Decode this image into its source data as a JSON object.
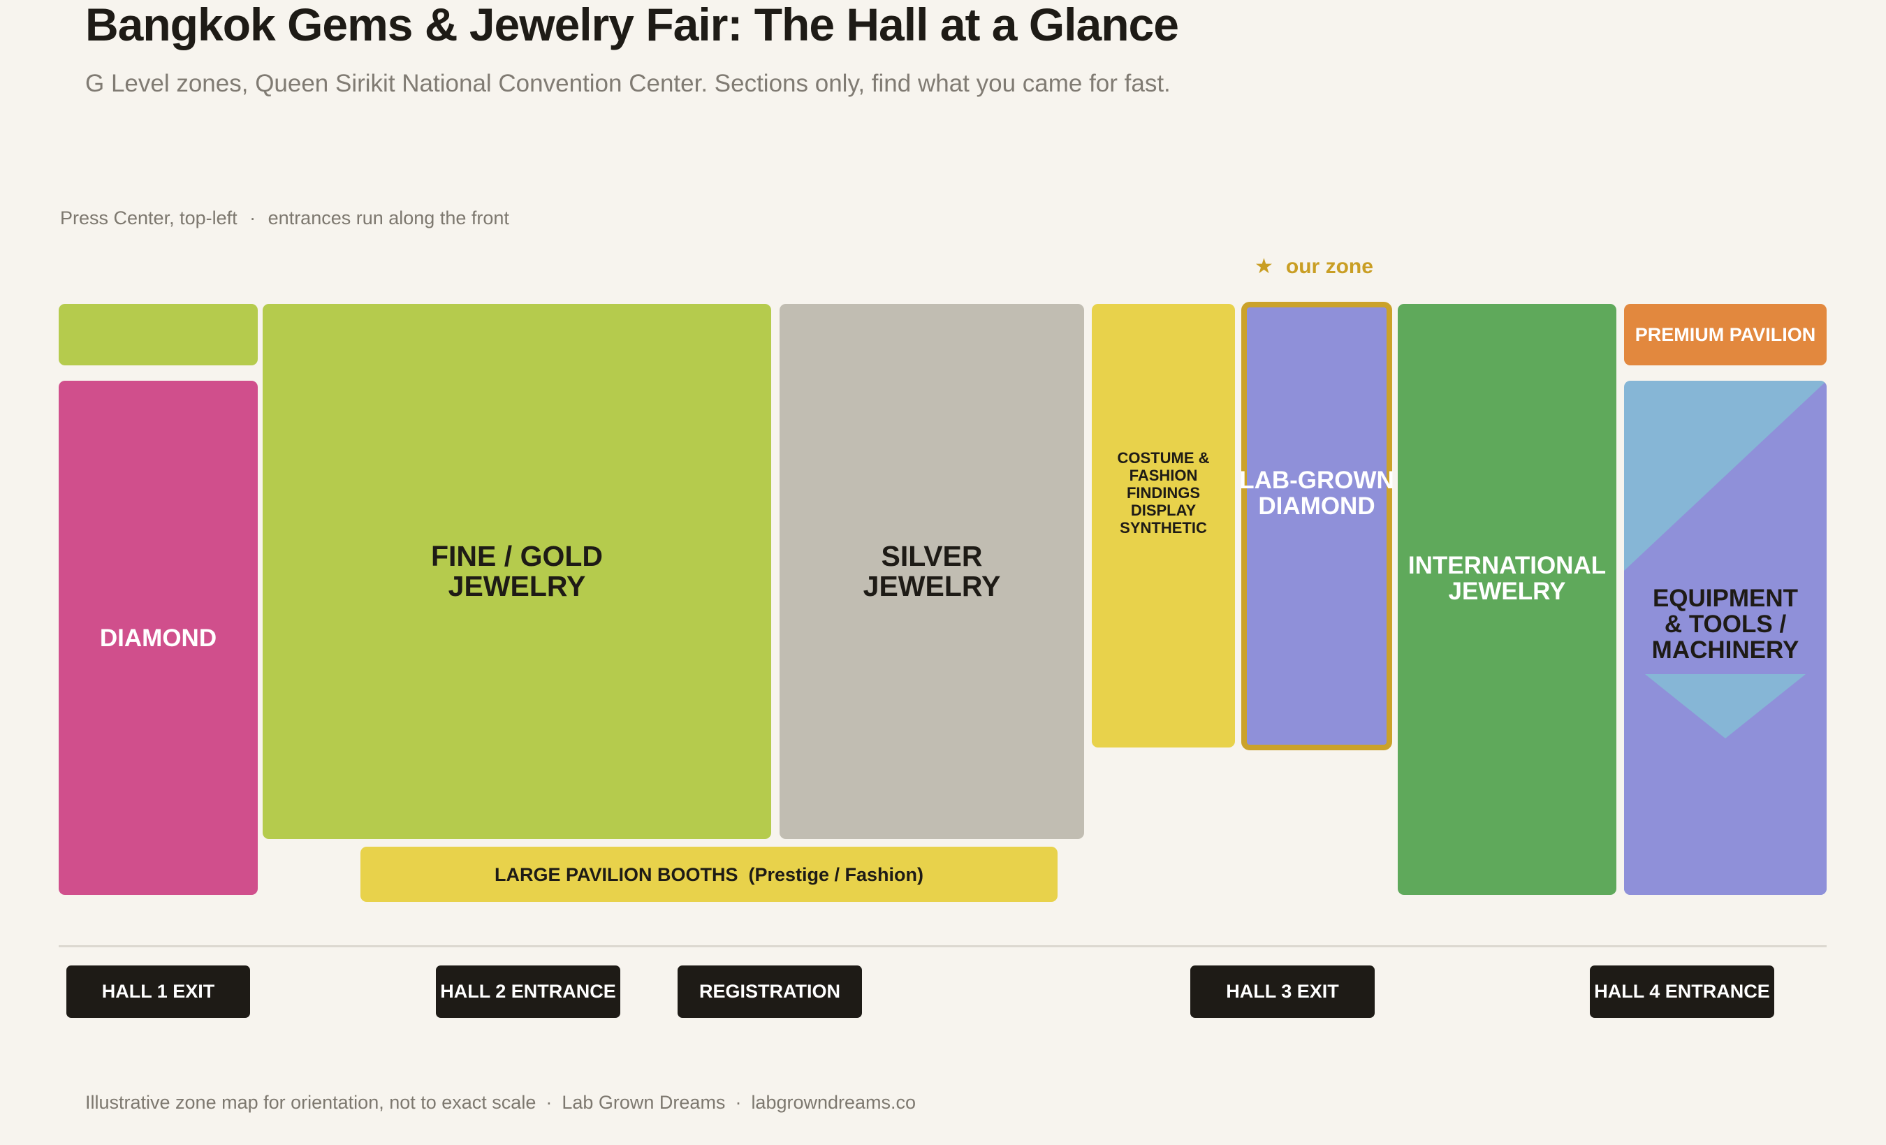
{
  "header": {
    "title": "Bangkok Gems & Jewelry Fair: The Hall at a Glance",
    "subtitle": "G Level zones, Queen Sirikit National Convention Center. Sections only, find what you came for fast."
  },
  "orientation": {
    "press": "Press Center, top-left",
    "separator": "·",
    "entrances": "entrances run along the front"
  },
  "highlight": {
    "star": "★",
    "label": "our zone"
  },
  "zones": {
    "press_center": {
      "label": "",
      "color": "#b5cb4d"
    },
    "diamond": {
      "label": "DIAMOND",
      "color": "#d04f8c"
    },
    "fine_gold": {
      "line1": "FINE / GOLD",
      "line2": "JEWELRY",
      "color": "#b5cb4d"
    },
    "silver": {
      "line1": "SILVER",
      "line2": "JEWELRY",
      "color": "#c1bdb2"
    },
    "costume": {
      "lines": [
        "COSTUME &",
        "FASHION",
        "FINDINGS",
        "DISPLAY",
        "SYNTHETIC"
      ],
      "color": "#e8d24b"
    },
    "lab_grown": {
      "line1": "LAB-GROWN",
      "line2": "DIAMOND",
      "color": "#8f90d9",
      "outline": "#cba22a"
    },
    "international": {
      "line1": "INTERNATIONAL",
      "line2": "JEWELRY",
      "color": "#5fa95b"
    },
    "premium": {
      "label": "PREMIUM PAVILION",
      "color": "#e2883e"
    },
    "equipment": {
      "lines": [
        "EQUIPMENT",
        "& TOOLS /",
        "MACHINERY"
      ],
      "color": "#86b6d6",
      "overlay": "#8f90d9"
    },
    "large_pavilion": {
      "label": "LARGE PAVILION BOOTHS  (Prestige / Fashion)",
      "color": "#e8d24b"
    }
  },
  "doors": [
    {
      "label": "HALL 1 EXIT"
    },
    {
      "label": "HALL 2 ENTRANCE"
    },
    {
      "label": "REGISTRATION"
    },
    {
      "label": "HALL 3 EXIT"
    },
    {
      "label": "HALL 4 ENTRANCE"
    }
  ],
  "footer": {
    "note": "Illustrative zone map for orientation, not to exact scale",
    "brand": "Lab Grown Dreams",
    "site": "labgrowndreams.co",
    "separator": "·"
  }
}
